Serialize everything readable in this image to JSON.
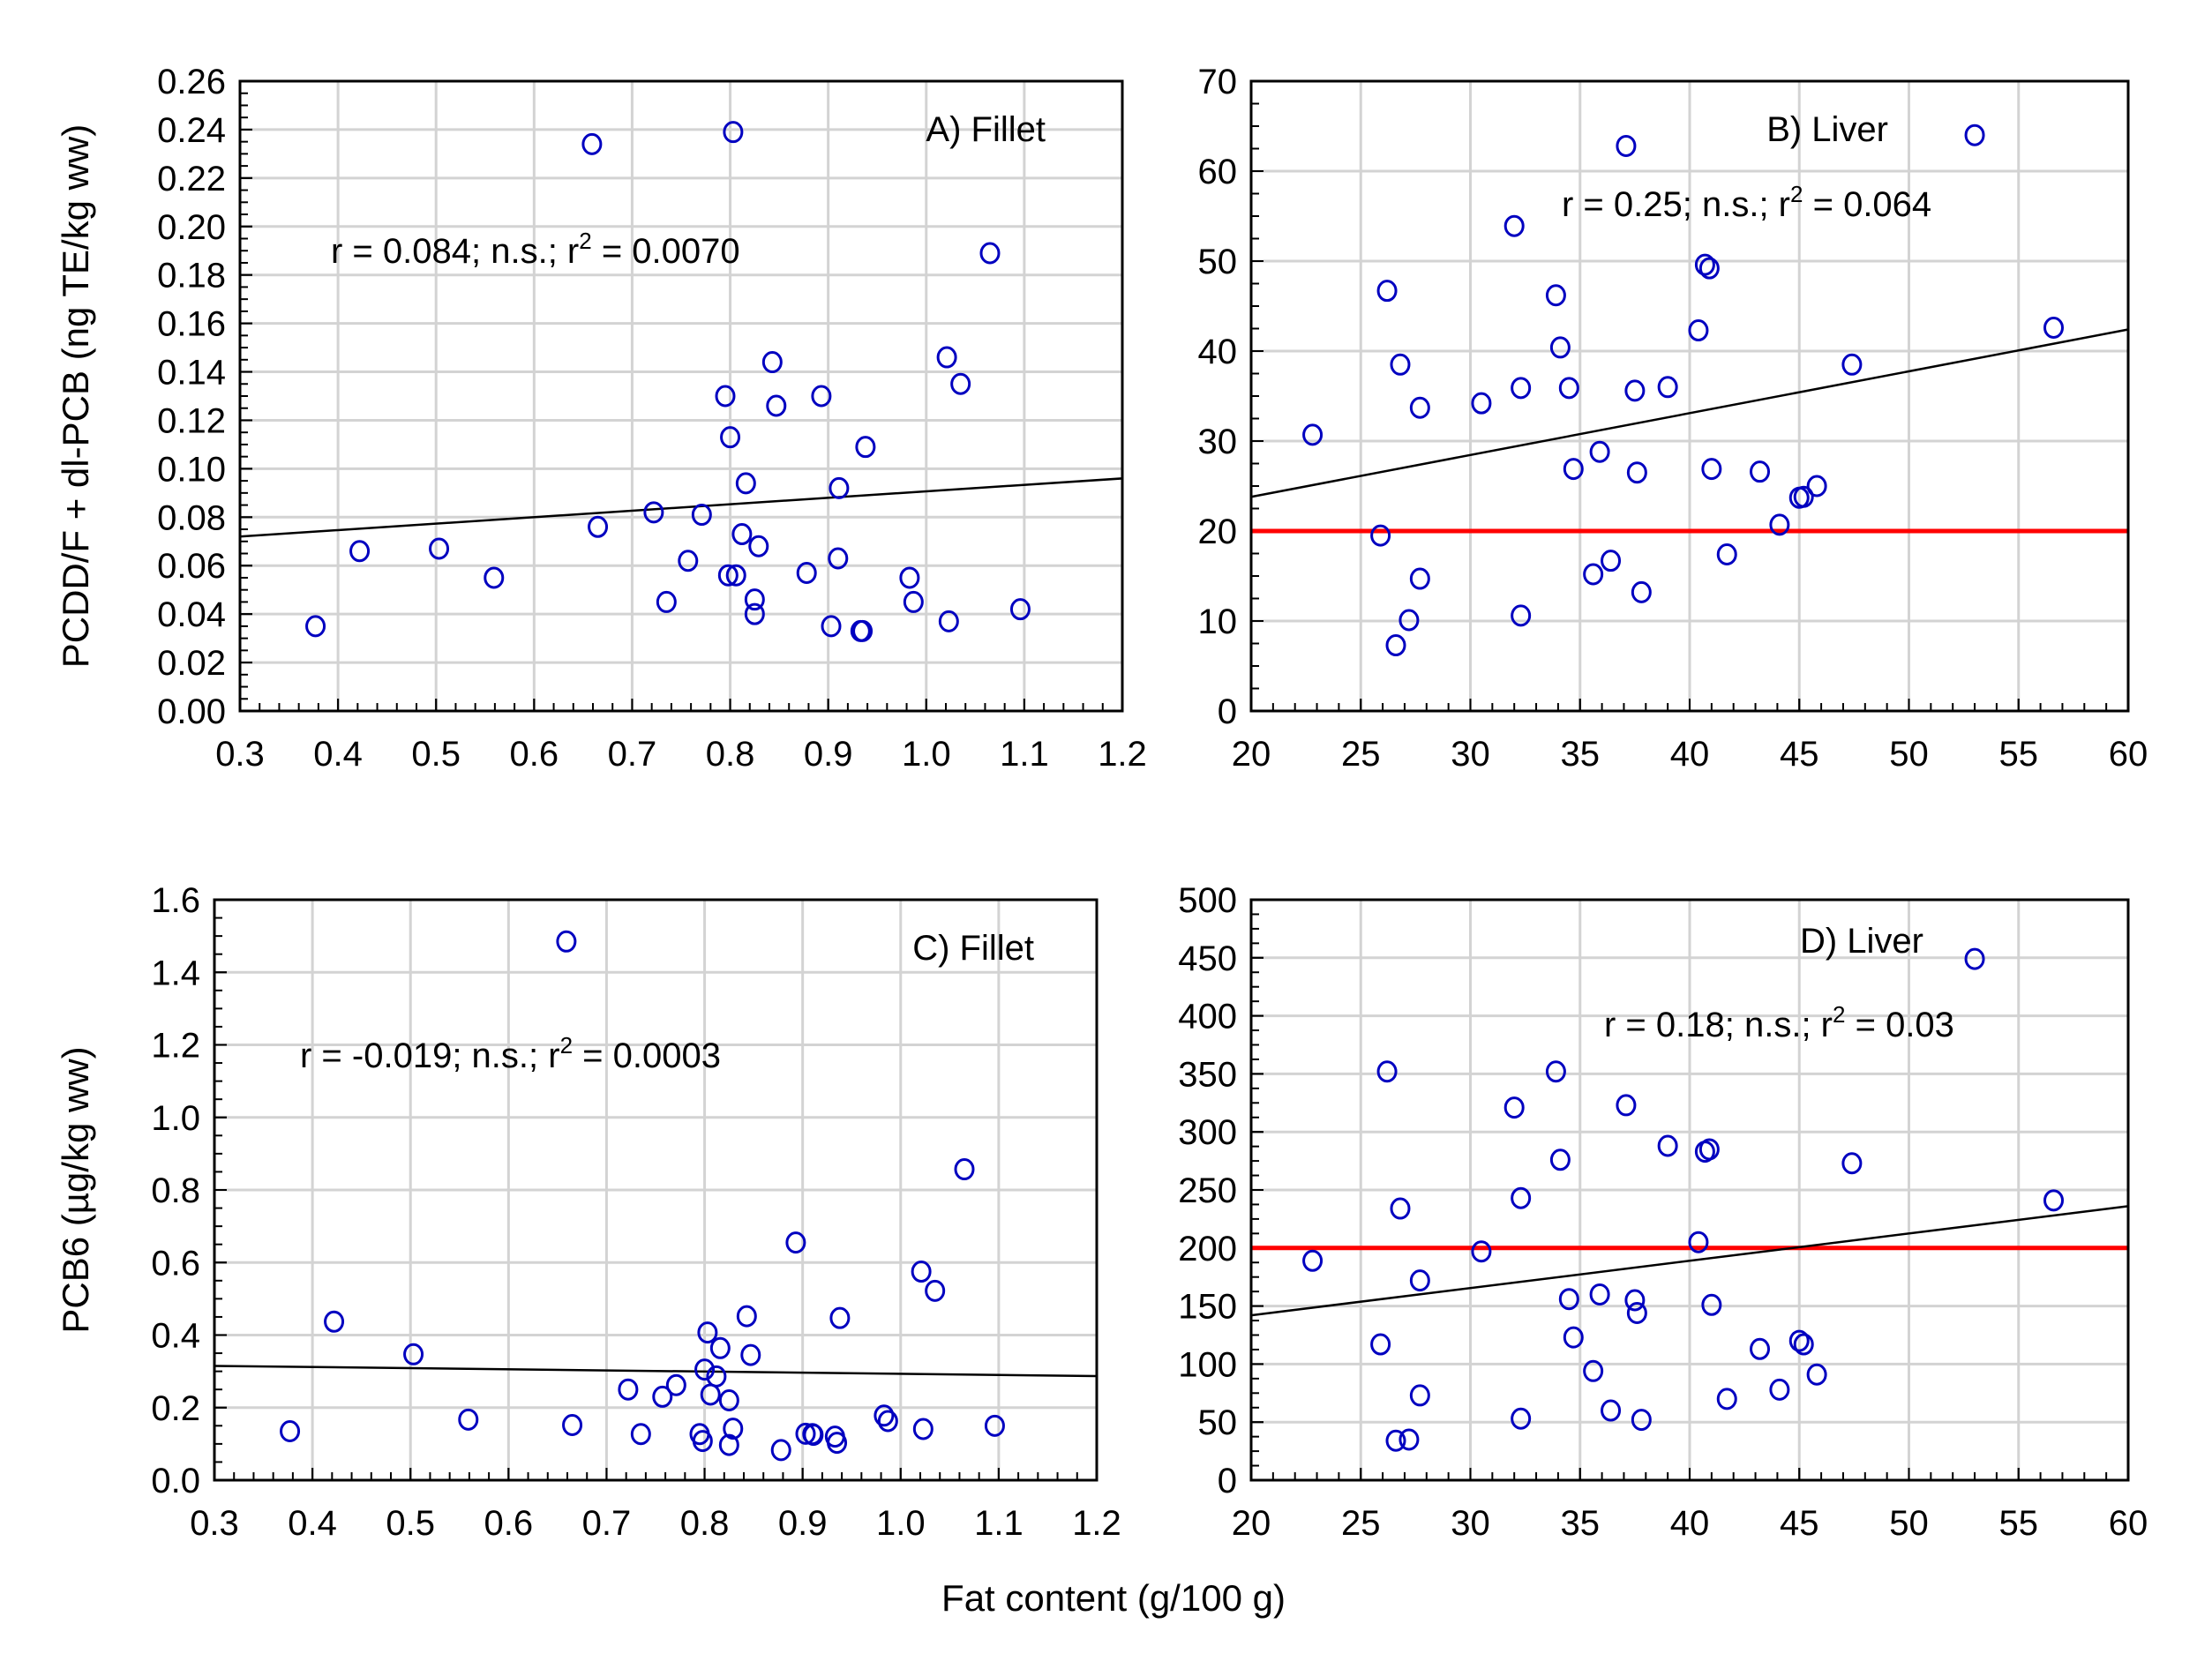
{
  "figure": {
    "shared_xlabel": "Fat content (g/100 g)"
  },
  "chart_data": [
    {
      "id": "A",
      "type": "scatter",
      "title": "A) Fillet",
      "annotation": {
        "pre": "r = 0.084; n.s.; r",
        "sup": "2",
        "post": " = 0.0070"
      },
      "xlabel": "",
      "ylabel": "PCDD/F + dl-PCB (ng TE/kg ww)",
      "xlim": [
        0.3,
        1.2
      ],
      "ylim": [
        0,
        0.26
      ],
      "xticks": [
        0.3,
        0.4,
        0.5,
        0.6,
        0.7,
        0.8,
        0.9,
        1.0,
        1.1,
        1.2
      ],
      "xtick_labels": [
        "0.3",
        "0.4",
        "0.5",
        "0.6",
        "0.7",
        "0.8",
        "0.9",
        "1.0",
        "1.1",
        "1.2"
      ],
      "yticks": [
        0,
        0.02,
        0.04,
        0.06,
        0.08,
        0.1,
        0.12,
        0.14,
        0.16,
        0.18,
        0.2,
        0.22,
        0.24,
        0.26
      ],
      "ytick_labels": [
        "0.00",
        "0.02",
        "0.04",
        "0.06",
        "0.08",
        "0.10",
        "0.12",
        "0.14",
        "0.16",
        "0.18",
        "0.20",
        "0.22",
        "0.24",
        "0.26"
      ],
      "grid": true,
      "fit_line": {
        "x": [
          0.3,
          1.2
        ],
        "y": [
          0.072,
          0.096
        ]
      },
      "reference_line": null,
      "points": [
        [
          0.377,
          0.035
        ],
        [
          0.422,
          0.066
        ],
        [
          0.503,
          0.067
        ],
        [
          0.559,
          0.055
        ],
        [
          0.659,
          0.234
        ],
        [
          0.665,
          0.076
        ],
        [
          0.722,
          0.082
        ],
        [
          0.735,
          0.045
        ],
        [
          0.757,
          0.062
        ],
        [
          0.771,
          0.081
        ],
        [
          0.795,
          0.13
        ],
        [
          0.798,
          0.056
        ],
        [
          0.8,
          0.113
        ],
        [
          0.803,
          0.239
        ],
        [
          0.806,
          0.056
        ],
        [
          0.812,
          0.073
        ],
        [
          0.816,
          0.094
        ],
        [
          0.825,
          0.046
        ],
        [
          0.825,
          0.04
        ],
        [
          0.829,
          0.068
        ],
        [
          0.843,
          0.144
        ],
        [
          0.847,
          0.126
        ],
        [
          0.878,
          0.057
        ],
        [
          0.893,
          0.13
        ],
        [
          0.903,
          0.035
        ],
        [
          0.91,
          0.063
        ],
        [
          0.911,
          0.092
        ],
        [
          0.933,
          0.033
        ],
        [
          0.935,
          0.033
        ],
        [
          0.938,
          0.109
        ],
        [
          0.983,
          0.055
        ],
        [
          0.987,
          0.045
        ],
        [
          1.021,
          0.146
        ],
        [
          1.023,
          0.037
        ],
        [
          1.035,
          0.135
        ],
        [
          1.065,
          0.189
        ],
        [
          1.096,
          0.042
        ]
      ]
    },
    {
      "id": "B",
      "type": "scatter",
      "title": "B) Liver",
      "annotation": {
        "pre": "r = 0.25; n.s.; r",
        "sup": "2",
        "post": " = 0.064"
      },
      "xlabel": "",
      "ylabel": "",
      "xlim": [
        20,
        60
      ],
      "ylim": [
        0,
        70
      ],
      "xticks": [
        20,
        25,
        30,
        35,
        40,
        45,
        50,
        55,
        60
      ],
      "xtick_labels": [
        "20",
        "25",
        "30",
        "35",
        "40",
        "45",
        "50",
        "55",
        "60"
      ],
      "yticks": [
        0,
        10,
        20,
        30,
        40,
        50,
        60,
        70
      ],
      "ytick_labels": [
        "0",
        "10",
        "20",
        "30",
        "40",
        "50",
        "60",
        "70"
      ],
      "grid": true,
      "fit_line": {
        "x": [
          20,
          60
        ],
        "y": [
          23.8,
          42.4
        ]
      },
      "reference_line": {
        "y": 20,
        "color": "#ff0000"
      },
      "points": [
        [
          22.8,
          30.7
        ],
        [
          25.9,
          19.5
        ],
        [
          26.2,
          46.7
        ],
        [
          26.6,
          7.3
        ],
        [
          26.8,
          38.5
        ],
        [
          27.2,
          10.1
        ],
        [
          27.7,
          33.7
        ],
        [
          27.7,
          14.7
        ],
        [
          30.5,
          34.2
        ],
        [
          32.0,
          53.9
        ],
        [
          32.3,
          10.6
        ],
        [
          32.3,
          35.9
        ],
        [
          33.9,
          46.2
        ],
        [
          34.1,
          40.4
        ],
        [
          34.5,
          35.9
        ],
        [
          34.7,
          26.9
        ],
        [
          35.6,
          15.2
        ],
        [
          35.9,
          28.8
        ],
        [
          36.4,
          16.7
        ],
        [
          37.1,
          62.8
        ],
        [
          37.5,
          35.6
        ],
        [
          37.6,
          26.5
        ],
        [
          37.8,
          13.2
        ],
        [
          39.0,
          36.0
        ],
        [
          40.4,
          42.3
        ],
        [
          40.7,
          49.6
        ],
        [
          40.9,
          49.2
        ],
        [
          41.0,
          26.9
        ],
        [
          41.7,
          17.4
        ],
        [
          43.2,
          26.6
        ],
        [
          44.1,
          20.7
        ],
        [
          45.0,
          23.7
        ],
        [
          45.2,
          23.8
        ],
        [
          45.8,
          25.0
        ],
        [
          47.4,
          38.5
        ],
        [
          53.0,
          64.0
        ],
        [
          56.6,
          42.6
        ]
      ]
    },
    {
      "id": "C",
      "type": "scatter",
      "title": "C) Fillet",
      "annotation": {
        "pre": "r = -0.019; n.s.; r",
        "sup": "2",
        "post": " = 0.0003"
      },
      "xlabel": "",
      "ylabel": "PCB6 (µg/kg ww)",
      "xlim": [
        0.3,
        1.2
      ],
      "ylim": [
        0,
        1.6
      ],
      "xticks": [
        0.3,
        0.4,
        0.5,
        0.6,
        0.7,
        0.8,
        0.9,
        1.0,
        1.1,
        1.2
      ],
      "xtick_labels": [
        "0.3",
        "0.4",
        "0.5",
        "0.6",
        "0.7",
        "0.8",
        "0.9",
        "1.0",
        "1.1",
        "1.2"
      ],
      "yticks": [
        0,
        0.2,
        0.4,
        0.6,
        0.8,
        1.0,
        1.2,
        1.4,
        1.6
      ],
      "ytick_labels": [
        "0.0",
        "0.2",
        "0.4",
        "0.6",
        "0.8",
        "1.0",
        "1.2",
        "1.4",
        "1.6"
      ],
      "grid": true,
      "fit_line": {
        "x": [
          0.3,
          1.2
        ],
        "y": [
          0.315,
          0.287
        ]
      },
      "reference_line": null,
      "points": [
        [
          0.377,
          0.135
        ],
        [
          0.422,
          0.437
        ],
        [
          0.503,
          0.347
        ],
        [
          0.559,
          0.167
        ],
        [
          0.659,
          1.485
        ],
        [
          0.665,
          0.152
        ],
        [
          0.722,
          0.25
        ],
        [
          0.735,
          0.127
        ],
        [
          0.757,
          0.23
        ],
        [
          0.771,
          0.262
        ],
        [
          0.795,
          0.127
        ],
        [
          0.798,
          0.108
        ],
        [
          0.8,
          0.305
        ],
        [
          0.803,
          0.407
        ],
        [
          0.806,
          0.236
        ],
        [
          0.812,
          0.286
        ],
        [
          0.816,
          0.364
        ],
        [
          0.825,
          0.22
        ],
        [
          0.825,
          0.097
        ],
        [
          0.829,
          0.142
        ],
        [
          0.843,
          0.452
        ],
        [
          0.847,
          0.345
        ],
        [
          0.878,
          0.083
        ],
        [
          0.893,
          0.655
        ],
        [
          0.903,
          0.128
        ],
        [
          0.91,
          0.127
        ],
        [
          0.911,
          0.125
        ],
        [
          0.933,
          0.12
        ],
        [
          0.935,
          0.103
        ],
        [
          0.938,
          0.447
        ],
        [
          0.983,
          0.178
        ],
        [
          0.987,
          0.163
        ],
        [
          1.021,
          0.575
        ],
        [
          1.023,
          0.141
        ],
        [
          1.035,
          0.522
        ],
        [
          1.065,
          0.857
        ],
        [
          1.096,
          0.15
        ]
      ]
    },
    {
      "id": "D",
      "type": "scatter",
      "title": "D) Liver",
      "annotation": {
        "pre": "r =  0.18; n.s.; r",
        "sup": "2",
        "post": " = 0.03"
      },
      "xlabel": "",
      "ylabel": "",
      "xlim": [
        20,
        60
      ],
      "ylim": [
        0,
        500
      ],
      "xticks": [
        20,
        25,
        30,
        35,
        40,
        45,
        50,
        55,
        60
      ],
      "xtick_labels": [
        "20",
        "25",
        "30",
        "35",
        "40",
        "45",
        "50",
        "55",
        "60"
      ],
      "yticks": [
        0,
        50,
        100,
        150,
        200,
        250,
        300,
        350,
        400,
        450,
        500
      ],
      "ytick_labels": [
        "0",
        "50",
        "100",
        "150",
        "200",
        "250",
        "300",
        "350",
        "400",
        "450",
        "500"
      ],
      "grid": true,
      "fit_line": {
        "x": [
          20,
          60
        ],
        "y": [
          142,
          236
        ]
      },
      "reference_line": {
        "y": 200,
        "color": "#ff0000"
      },
      "points": [
        [
          22.8,
          189
        ],
        [
          25.9,
          117
        ],
        [
          26.2,
          352
        ],
        [
          26.6,
          34
        ],
        [
          26.8,
          234
        ],
        [
          27.2,
          35
        ],
        [
          27.7,
          172
        ],
        [
          27.7,
          73
        ],
        [
          30.5,
          197
        ],
        [
          32.0,
          321
        ],
        [
          32.3,
          53
        ],
        [
          32.3,
          243
        ],
        [
          33.9,
          352
        ],
        [
          34.1,
          276
        ],
        [
          34.5,
          156
        ],
        [
          34.7,
          123
        ],
        [
          35.6,
          94
        ],
        [
          35.9,
          160
        ],
        [
          36.4,
          60
        ],
        [
          37.1,
          323
        ],
        [
          37.5,
          155
        ],
        [
          37.6,
          144
        ],
        [
          37.8,
          52
        ],
        [
          39.0,
          288
        ],
        [
          40.4,
          205
        ],
        [
          40.7,
          283
        ],
        [
          40.9,
          285
        ],
        [
          41.0,
          151
        ],
        [
          41.7,
          70
        ],
        [
          43.2,
          113
        ],
        [
          44.1,
          78
        ],
        [
          45.0,
          120
        ],
        [
          45.2,
          117
        ],
        [
          45.8,
          91
        ],
        [
          47.4,
          273
        ],
        [
          53.0,
          449
        ],
        [
          56.6,
          241
        ]
      ]
    }
  ]
}
